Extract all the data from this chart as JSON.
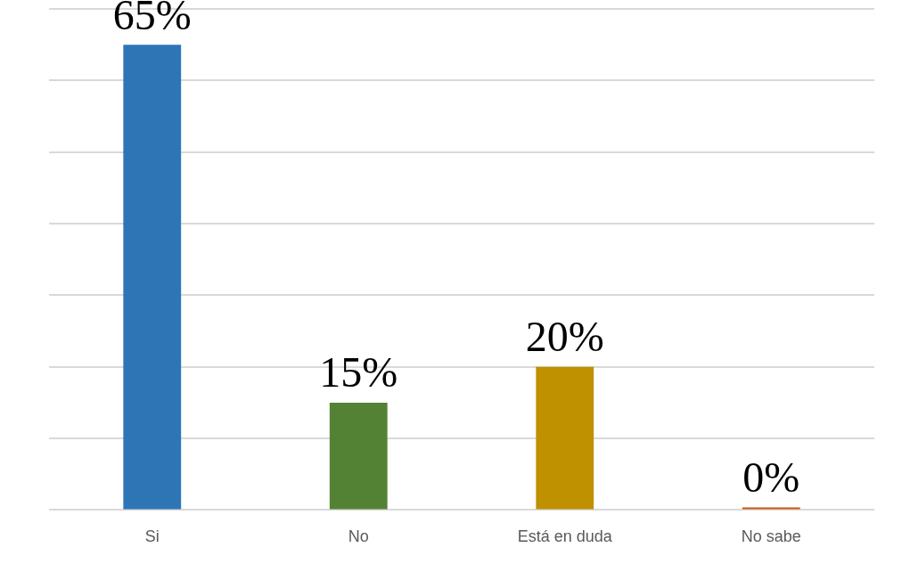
{
  "chart_data": {
    "type": "bar",
    "categories": [
      "Si",
      "No",
      "Está en duda",
      "No sabe"
    ],
    "values": [
      65,
      15,
      20,
      0
    ],
    "colors": [
      "#2e75b6",
      "#548235",
      "#bf9000",
      "#c55a11"
    ],
    "ylim": [
      0,
      70
    ],
    "yticks": [
      {
        "value": 0,
        "label": null
      },
      {
        "value": 10,
        "label": null
      },
      {
        "value": 20,
        "label": null
      },
      {
        "value": 30,
        "label": null
      },
      {
        "value": 40,
        "label": null
      },
      {
        "value": 50,
        "label": null
      },
      {
        "value": 60,
        "label": null
      },
      {
        "value": 70,
        "label": null
      }
    ],
    "value_labels": [
      "65%",
      "15%",
      "20%",
      "0%"
    ],
    "grid": "y",
    "tick_labels": "x",
    "legend": false
  }
}
